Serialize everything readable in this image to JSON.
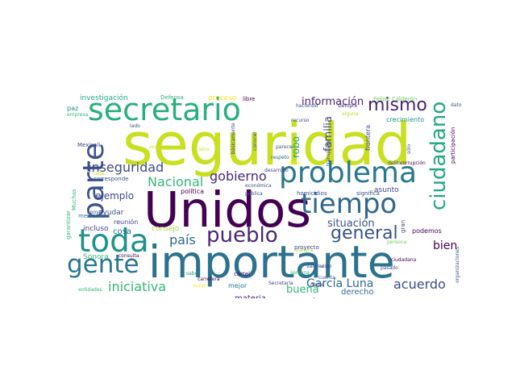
{
  "words": [
    {
      "text": "seguridad",
      "color": "#c8e020"
    },
    {
      "text": "Unidos",
      "color": "#440154"
    },
    {
      "text": "importante",
      "color": "#2c728e"
    },
    {
      "text": "secretario",
      "color": "#29af7f"
    },
    {
      "text": "problema",
      "color": "#2a788e"
    },
    {
      "text": "parte",
      "color": "#3b528b"
    },
    {
      "text": "toda",
      "color": "#21918c"
    },
    {
      "text": "tiempo",
      "color": "#31688e"
    },
    {
      "text": "gente",
      "color": "#2a788e"
    },
    {
      "text": "ciudadano",
      "color": "#22a884"
    },
    {
      "text": "pueblo",
      "color": "#482878"
    },
    {
      "text": "mismo",
      "color": "#482475"
    },
    {
      "text": "general",
      "color": "#3b528b"
    },
    {
      "text": "inseguridad",
      "color": "#3e4989"
    },
    {
      "text": "gobierno",
      "color": "#482878"
    },
    {
      "text": "Nacional",
      "color": "#35b779"
    },
    {
      "text": "país",
      "color": "#31688e"
    },
    {
      "text": "iniciativa",
      "color": "#35b779"
    },
    {
      "text": "García Luna",
      "color": "#31688e"
    },
    {
      "text": "acuerdo",
      "color": "#3e4989"
    },
    {
      "text": "información",
      "color": "#482475"
    },
    {
      "text": "situación",
      "color": "#3b528b"
    },
    {
      "text": "ejemplo",
      "color": "#3e4989"
    },
    {
      "text": "familia",
      "color": "#414487"
    },
    {
      "text": "robo",
      "color": "#1f9e89"
    },
    {
      "text": "bien",
      "color": "#440154"
    },
    {
      "text": "buena",
      "color": "#35b779"
    },
    {
      "text": "investigación",
      "color": "#22a884"
    },
    {
      "text": "proceso",
      "color": "#fde725"
    },
    {
      "text": "crecimiento",
      "color": "#21918c"
    },
    {
      "text": "materia",
      "color": "#482878"
    },
    {
      "text": "momento",
      "color": "#3e4989"
    },
    {
      "text": "derecho",
      "color": "#31688e"
    },
    {
      "text": "ayudar",
      "color": "#3b528b"
    },
    {
      "text": "cosa",
      "color": "#2c728e"
    },
    {
      "text": "consejo",
      "color": "#a0da39"
    },
    {
      "text": "Sonora",
      "color": "#35b779"
    },
    {
      "text": "incluso",
      "color": "#414487"
    },
    {
      "text": "reunión",
      "color": "#414487"
    },
    {
      "text": "política",
      "color": "#440154"
    },
    {
      "text": "mejor",
      "color": "#2a788e"
    },
    {
      "text": "podemos",
      "color": "#440154"
    },
    {
      "text": "Felipe Calderón",
      "color": "#6ece58"
    },
    {
      "text": "Defensa",
      "color": "#29af7f"
    },
    {
      "text": "libre",
      "color": "#440154"
    },
    {
      "text": "paz",
      "color": "#21918c"
    },
    {
      "text": "empresa",
      "color": "#35b779"
    },
    {
      "text": "Mexicali",
      "color": "#414487"
    },
    {
      "text": "mexicano",
      "color": "#2a788e"
    },
    {
      "text": "garantizar",
      "color": "#35b779"
    },
    {
      "text": "Muchas",
      "color": "#35b779"
    },
    {
      "text": "entidades",
      "color": "#35b779"
    },
    {
      "text": "corresponde",
      "color": "#3b528b"
    },
    {
      "text": "frontera",
      "color": "#3e4989"
    },
    {
      "text": "transporte",
      "color": "#3e4989"
    },
    {
      "text": "participación",
      "color": "#440154"
    },
    {
      "text": "dato",
      "color": "#3b528b"
    },
    {
      "text": "haciendo",
      "color": "#3b528b"
    },
    {
      "text": "siempre",
      "color": "#482475"
    },
    {
      "text": "alguna",
      "color": "#b5de2b"
    },
    {
      "text": "recurso",
      "color": "#3e4989"
    },
    {
      "text": "parece",
      "color": "#3b528b"
    },
    {
      "text": "respeto",
      "color": "#31688e"
    },
    {
      "text": "delito",
      "color": "#3e4989"
    },
    {
      "text": "corrupción",
      "color": "#440154"
    },
    {
      "text": "sólo",
      "color": "#3e4989"
    },
    {
      "text": "conocer",
      "color": "#3e4989"
    },
    {
      "text": "básicamente",
      "color": "#414487"
    },
    {
      "text": "económico",
      "color": "#c8e020"
    },
    {
      "text": "sino",
      "color": "#c8e020"
    },
    {
      "text": "desarrollo",
      "color": "#3e4989"
    },
    {
      "text": "económica",
      "color": "#3e4989"
    },
    {
      "text": "pública",
      "color": "#3e4989"
    },
    {
      "text": "homicidios",
      "color": "#3b528b"
    },
    {
      "text": "significa",
      "color": "#3e4989"
    },
    {
      "text": "asunto",
      "color": "#3e4989"
    },
    {
      "text": "persona",
      "color": "#6ece58"
    },
    {
      "text": "gran",
      "color": "#414487"
    },
    {
      "text": "ciudadana",
      "color": "#440154"
    },
    {
      "text": "pasado",
      "color": "#3b528b"
    },
    {
      "text": "organizaciones",
      "color": "#3b528b"
    },
    {
      "text": "cártel",
      "color": "#440154"
    },
    {
      "text": "manera",
      "color": "#b5de2b"
    },
    {
      "text": "proyecto",
      "color": "#3e4989"
    },
    {
      "text": "valores",
      "color": "#3e4989"
    },
    {
      "text": "visto",
      "color": "#3e4989"
    },
    {
      "text": "semana",
      "color": "#35b779"
    },
    {
      "text": "cuenta",
      "color": "#3b528b"
    },
    {
      "text": "nadie",
      "color": "#3e4989"
    },
    {
      "text": "carretera",
      "color": "#440154"
    },
    {
      "text": "punto",
      "color": "#fde725"
    },
    {
      "text": "Secretaría",
      "color": "#3e4989"
    },
    {
      "text": "saber",
      "color": "#21918c"
    },
    {
      "text": "consulta",
      "color": "#440154"
    },
    {
      "text": "apoyo",
      "color": "#3b528b"
    },
    {
      "text": "lado",
      "color": "#3b528b"
    },
    {
      "text": "debe",
      "color": "#fde725"
    },
    {
      "text": "cada",
      "color": "#c8e020"
    }
  ]
}
